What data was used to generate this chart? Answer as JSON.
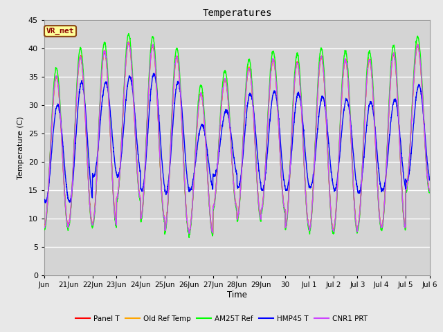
{
  "title": "Temperatures",
  "ylabel": "Temperature (C)",
  "xlabel": "Time",
  "ylim": [
    0,
    45
  ],
  "yticks": [
    0,
    5,
    10,
    15,
    20,
    25,
    30,
    35,
    40,
    45
  ],
  "annotation_text": "VR_met",
  "annotation_color": "#8B0000",
  "annotation_face": "#FFFF99",
  "annotation_edge": "#8B4513",
  "series": [
    {
      "label": "Panel T",
      "color": "#FF0000",
      "lw": 1.0
    },
    {
      "label": "Old Ref Temp",
      "color": "#FFA500",
      "lw": 1.0
    },
    {
      "label": "AM25T Ref",
      "color": "#00FF00",
      "lw": 1.0
    },
    {
      "label": "HMP45 T",
      "color": "#0000FF",
      "lw": 1.0
    },
    {
      "label": "CNR1 PRT",
      "color": "#CC44FF",
      "lw": 1.0
    }
  ],
  "bg_color": "#E8E8E8",
  "plot_bg_color": "#D4D4D4",
  "grid_color": "#FFFFFF",
  "x_tick_labels": [
    "Jun",
    "21Jun",
    "22Jun",
    "23Jun",
    "24Jun",
    "25Jun",
    "26Jun",
    "27Jun",
    "28Jun",
    "29Jun",
    "30",
    "Jul 1",
    "Jul 2",
    "Jul 3",
    "Jul 4",
    "Jul 5",
    "Jul 6"
  ],
  "day_maxes": [
    35.0,
    38.5,
    39.5,
    41.0,
    40.5,
    38.5,
    32.0,
    34.5,
    36.5,
    38.0,
    37.5,
    38.5,
    38.0,
    38.0,
    39.0,
    40.5,
    40.0
  ],
  "day_mins": [
    8.5,
    9.0,
    9.0,
    13.5,
    10.0,
    8.0,
    7.5,
    12.0,
    10.0,
    11.5,
    8.5,
    8.0,
    8.0,
    8.5,
    8.5,
    15.0,
    15.0
  ],
  "hmp_maxes": [
    30.0,
    34.0,
    34.0,
    35.0,
    35.5,
    34.0,
    26.5,
    29.0,
    32.0,
    32.5,
    32.0,
    31.5,
    31.0,
    30.5,
    31.0,
    33.5,
    33.5
  ],
  "hmp_mins": [
    13.0,
    13.0,
    17.5,
    17.5,
    15.0,
    14.5,
    15.0,
    17.5,
    15.5,
    15.0,
    15.0,
    15.5,
    15.0,
    14.5,
    15.0,
    16.5,
    16.5
  ]
}
